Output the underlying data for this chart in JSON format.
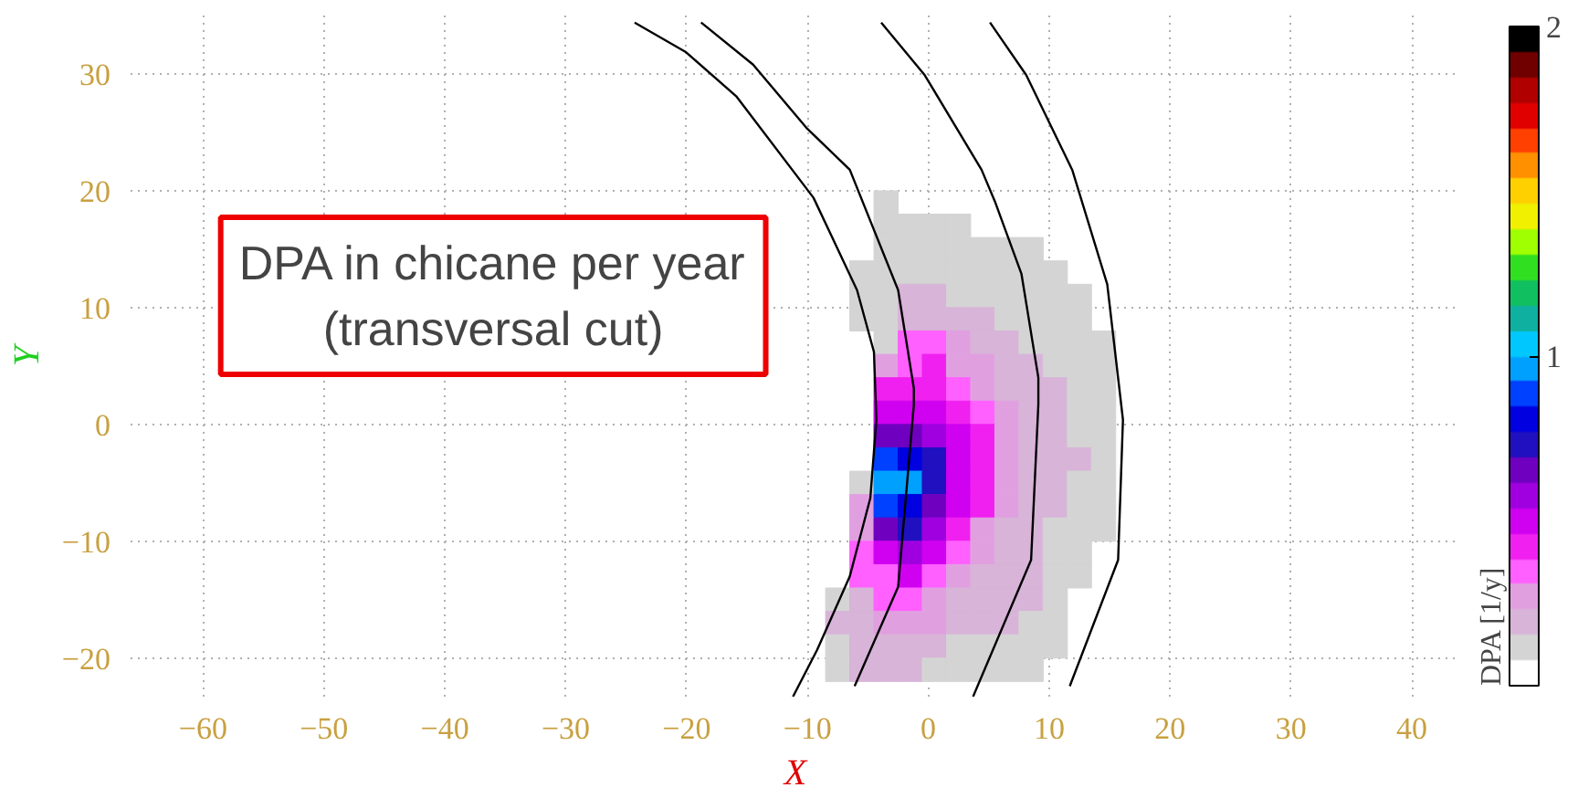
{
  "chart_data": {
    "type": "scatter",
    "xlabel": "X",
    "ylabel": "Y",
    "clabel": "DPA [1/y]",
    "annotations": [
      "DPA in chicane per year\n(transversal cut)"
    ],
    "xlim": [
      -66,
      44
    ],
    "ylim": [
      -23.3,
      35
    ],
    "xticks": [
      -60,
      -50,
      -40,
      -30,
      -20,
      -10,
      0,
      10,
      20,
      30,
      40
    ],
    "yticks": [
      -20,
      -10,
      0,
      10,
      20,
      30
    ],
    "clim": [
      0,
      2
    ],
    "cticks": [
      1,
      2
    ],
    "grid": true,
    "series": [
      {
        "marker": "square",
        "colors": [
          "#d4d4d4",
          "#d4d4d4",
          "#d4d4d4",
          "#d4d4d4",
          "#d4d4d4",
          "#d4d4d4",
          "#d4d4d4",
          "#d4d4d4",
          "#d4d4d4",
          "#d4d4d4",
          "#d4d4d4",
          "#d4d4d4",
          "#d4d4d4",
          "#d4d4d4",
          "#d4d4d4",
          "#d4d4d4",
          "#d4d4d4",
          "#d4d4d4",
          "#d4d4d4",
          "#d4d4d4",
          "#d4d4d4",
          "#d4d4d4",
          "#d4d4d4",
          "#d8b4d8",
          "#d8b4d8",
          "#d4d4d4",
          "#d4d4d4",
          "#d4d4d4",
          "#d4d4d4",
          "#d4d4d4",
          "#d4d4d4",
          "#d4d4d4",
          "#d4d4d4",
          "#d8b4d8",
          "#d8b4d8",
          "#d8b4d8",
          "#d8b4d8",
          "#d4d4d4",
          "#d4d4d4",
          "#d4d4d4",
          "#d4d4d4",
          "#d4d4d4",
          "#ff60ff",
          "#ff60ff",
          "#e0a0e0",
          "#d8b4d8",
          "#d8b4d8",
          "#d4d4d4",
          "#d4d4d4",
          "#d4d4d4",
          "#d4d4d4",
          "#e0a0e0",
          "#ff60ff",
          "#f020f0",
          "#e0a0e0",
          "#e0a0e0",
          "#d8b4d8",
          "#d8b4d8",
          "#d4d4d4",
          "#d4d4d4",
          "#d4d4d4",
          "#f020f0",
          "#f020f0",
          "#f020f0",
          "#ff60ff",
          "#e0a0e0",
          "#d8b4d8",
          "#d8b4d8",
          "#d8b4d8",
          "#d4d4d4",
          "#d4d4d4",
          "#d000f0",
          "#d000f0",
          "#d000f0",
          "#f020f0",
          "#ff60ff",
          "#e0a0e0",
          "#d8b4d8",
          "#d8b4d8",
          "#d4d4d4",
          "#d4d4d4",
          "#7000c0",
          "#7000c0",
          "#a000e0",
          "#d000f0",
          "#f020f0",
          "#e0a0e0",
          "#d8b4d8",
          "#d8b4d8",
          "#d4d4d4",
          "#d4d4d4",
          "#0040ff",
          "#0000e0",
          "#2010c0",
          "#d000f0",
          "#f020f0",
          "#e0a0e0",
          "#d8b4d8",
          "#d8b4d8",
          "#d8b4d8",
          "#d4d4d4",
          "#d4d4d4",
          "#00a0ff",
          "#00a0ff",
          "#2010c0",
          "#d000f0",
          "#f020f0",
          "#e0a0e0",
          "#d8b4d8",
          "#d8b4d8",
          "#d4d4d4",
          "#d4d4d4",
          "#e0a0e0",
          "#0040ff",
          "#0000e0",
          "#7000c0",
          "#d000f0",
          "#f020f0",
          "#e0a0e0",
          "#d8b4d8",
          "#d8b4d8",
          "#d4d4d4",
          "#d4d4d4",
          "#e0a0e0",
          "#7000c0",
          "#2010c0",
          "#a000e0",
          "#f020f0",
          "#e0a0e0",
          "#d8b4d8",
          "#d8b4d8",
          "#d4d4d4",
          "#d4d4d4",
          "#d4d4d4",
          "#ff60ff",
          "#d000f0",
          "#a000e0",
          "#d000f0",
          "#ff60ff",
          "#e0a0e0",
          "#d8b4d8",
          "#d8b4d8",
          "#d4d4d4",
          "#d4d4d4",
          "#ff60ff",
          "#ff60ff",
          "#d000f0",
          "#ff60ff",
          "#e0a0e0",
          "#d8b4d8",
          "#d8b4d8",
          "#d8b4d8",
          "#d4d4d4",
          "#d4d4d4",
          "#d4d4d4",
          "#d8b4d8",
          "#ff60ff",
          "#ff60ff",
          "#e0a0e0",
          "#d8b4d8",
          "#d8b4d8",
          "#d8b4d8",
          "#d8b4d8",
          "#d4d4d4",
          "#d8b4d8",
          "#d8b4d8",
          "#e0a0e0",
          "#e0a0e0",
          "#e0a0e0",
          "#d8b4d8",
          "#d8b4d8",
          "#d8b4d8",
          "#d4d4d4",
          "#d4d4d4",
          "#d4d4d4",
          "#d8b4d8",
          "#d8b4d8",
          "#d8b4d8",
          "#d8b4d8",
          "#d4d4d4",
          "#d4d4d4",
          "#d4d4d4",
          "#d4d4d4",
          "#d4d4d4",
          "#d4d4d4",
          "#d8b4d8",
          "#d8b4d8",
          "#d8b4d8",
          "#d4d4d4",
          "#d4d4d4",
          "#d4d4d4",
          "#d4d4d4",
          "#d4d4d4"
        ],
        "x": [
          -3.5,
          -3.5,
          -1.5,
          0.5,
          2.5,
          -3.5,
          -1.5,
          0.5,
          2.5,
          4.5,
          6.5,
          8.5,
          -5.5,
          -3.5,
          -1.5,
          0.5,
          2.5,
          4.5,
          6.5,
          8.5,
          10.5,
          -5.5,
          -3.5,
          -1.5,
          0.5,
          2.5,
          4.5,
          6.5,
          8.5,
          10.5,
          12.5,
          -5.5,
          -3.5,
          -1.5,
          0.5,
          2.5,
          4.5,
          6.5,
          8.5,
          10.5,
          12.5,
          -3.5,
          -1.5,
          0.5,
          2.5,
          4.5,
          6.5,
          8.5,
          10.5,
          12.5,
          14.5,
          -3.5,
          -1.5,
          0.5,
          2.5,
          4.5,
          6.5,
          8.5,
          10.5,
          12.5,
          14.5,
          -3.5,
          -1.5,
          0.5,
          2.5,
          4.5,
          6.5,
          8.5,
          10.5,
          12.5,
          14.5,
          -3.5,
          -1.5,
          0.5,
          2.5,
          4.5,
          6.5,
          8.5,
          10.5,
          12.5,
          14.5,
          -3.5,
          -1.5,
          0.5,
          2.5,
          4.5,
          6.5,
          8.5,
          10.5,
          12.5,
          14.5,
          -3.5,
          -1.5,
          0.5,
          2.5,
          4.5,
          6.5,
          8.5,
          10.5,
          12.5,
          14.5,
          -5.5,
          -3.5,
          -1.5,
          0.5,
          2.5,
          4.5,
          6.5,
          8.5,
          10.5,
          12.5,
          14.5,
          -5.5,
          -3.5,
          -1.5,
          0.5,
          2.5,
          4.5,
          6.5,
          8.5,
          10.5,
          12.5,
          14.5,
          -5.5,
          -3.5,
          -1.5,
          0.5,
          2.5,
          4.5,
          6.5,
          8.5,
          10.5,
          12.5,
          14.5,
          -5.5,
          -3.5,
          -1.5,
          0.5,
          2.5,
          4.5,
          6.5,
          8.5,
          10.5,
          12.5,
          -5.5,
          -3.5,
          -1.5,
          0.5,
          2.5,
          4.5,
          6.5,
          8.5,
          10.5,
          12.5,
          -7.5,
          -5.5,
          -3.5,
          -1.5,
          0.5,
          2.5,
          4.5,
          6.5,
          8.5,
          10.5,
          -7.5,
          -5.5,
          -3.5,
          -1.5,
          0.5,
          2.5,
          4.5,
          6.5,
          8.5,
          10.5,
          -7.5,
          -5.5,
          -3.5,
          -1.5,
          0.5,
          2.5,
          4.5,
          6.5,
          8.5,
          10.5,
          -7.5,
          -5.5,
          -3.5,
          -1.5,
          0.5,
          2.5,
          4.5,
          6.5,
          8.5
        ],
        "values": [
          19,
          17,
          17,
          17,
          17,
          15,
          15,
          15,
          15,
          15,
          15,
          15,
          13,
          13,
          13,
          13,
          13,
          13,
          13,
          13,
          13,
          11,
          11,
          11,
          11,
          11,
          11,
          11,
          11,
          11,
          11,
          9,
          9,
          9,
          9,
          9,
          9,
          9,
          9,
          9,
          9,
          7,
          7,
          7,
          7,
          7,
          7,
          7,
          7,
          7,
          7,
          5,
          5,
          5,
          5,
          5,
          5,
          5,
          5,
          5,
          5,
          3,
          3,
          3,
          3,
          3,
          3,
          3,
          3,
          3,
          3,
          1,
          1,
          1,
          1,
          1,
          1,
          1,
          1,
          1,
          1,
          -1,
          -1,
          -1,
          -1,
          -1,
          -1,
          -1,
          -1,
          -1,
          -1,
          -3,
          -3,
          -3,
          -3,
          -3,
          -3,
          -3,
          -3,
          -3,
          -3,
          -5,
          -5,
          -5,
          -5,
          -5,
          -5,
          -5,
          -5,
          -5,
          -5,
          -5,
          -7,
          -7,
          -7,
          -7,
          -7,
          -7,
          -7,
          -7,
          -7,
          -7,
          -7,
          -9,
          -9,
          -9,
          -9,
          -9,
          -9,
          -9,
          -9,
          -9,
          -9,
          -9,
          -11,
          -11,
          -11,
          -11,
          -11,
          -11,
          -11,
          -11,
          -11,
          -11,
          -13,
          -13,
          -13,
          -13,
          -13,
          -13,
          -13,
          -13,
          -13,
          -13,
          -15,
          -15,
          -15,
          -15,
          -15,
          -15,
          -15,
          -15,
          -15,
          -15,
          -17,
          -17,
          -17,
          -17,
          -17,
          -17,
          -17,
          -17,
          -17,
          -17,
          -19,
          -19,
          -19,
          -19,
          -19,
          -19,
          -19,
          -19,
          -19,
          -19,
          -21,
          -21,
          -21,
          -21,
          -21,
          -21,
          -21,
          -21,
          -21
        ],
        "cvalues": [
          0.12,
          0.12,
          0.12,
          0.12,
          0.12,
          0.12,
          0.12,
          0.12,
          0.12,
          0.12,
          0.12,
          0.12,
          0.12,
          0.12,
          0.12,
          0.12,
          0.12,
          0.12,
          0.12,
          0.12,
          0.12,
          0.12,
          0.12,
          0.19,
          0.19,
          0.12,
          0.12,
          0.12,
          0.12,
          0.12,
          0.12,
          0.12,
          0.12,
          0.19,
          0.19,
          0.19,
          0.19,
          0.12,
          0.12,
          0.12,
          0.12,
          0.12,
          0.35,
          0.35,
          0.27,
          0.19,
          0.19,
          0.12,
          0.12,
          0.12,
          0.12,
          0.27,
          0.35,
          0.42,
          0.27,
          0.27,
          0.19,
          0.19,
          0.12,
          0.12,
          0.12,
          0.42,
          0.42,
          0.42,
          0.35,
          0.27,
          0.19,
          0.19,
          0.19,
          0.12,
          0.12,
          0.5,
          0.5,
          0.5,
          0.42,
          0.35,
          0.27,
          0.19,
          0.19,
          0.12,
          0.12,
          0.65,
          0.65,
          0.58,
          0.5,
          0.42,
          0.27,
          0.19,
          0.19,
          0.12,
          0.12,
          0.88,
          0.81,
          0.73,
          0.5,
          0.42,
          0.27,
          0.19,
          0.19,
          0.19,
          0.12,
          0.12,
          0.96,
          0.96,
          0.73,
          0.5,
          0.42,
          0.27,
          0.19,
          0.19,
          0.12,
          0.12,
          0.27,
          0.88,
          0.81,
          0.65,
          0.5,
          0.42,
          0.27,
          0.19,
          0.19,
          0.12,
          0.12,
          0.27,
          0.65,
          0.73,
          0.58,
          0.42,
          0.27,
          0.19,
          0.19,
          0.12,
          0.12,
          0.12,
          0.35,
          0.5,
          0.58,
          0.5,
          0.35,
          0.27,
          0.19,
          0.19,
          0.12,
          0.12,
          0.35,
          0.35,
          0.5,
          0.35,
          0.27,
          0.19,
          0.19,
          0.19,
          0.12,
          0.12,
          0.12,
          0.19,
          0.35,
          0.35,
          0.27,
          0.19,
          0.19,
          0.19,
          0.19,
          0.12,
          0.19,
          0.19,
          0.27,
          0.27,
          0.27,
          0.19,
          0.19,
          0.19,
          0.12,
          0.12,
          0.12,
          0.19,
          0.19,
          0.19,
          0.19,
          0.12,
          0.12,
          0.12,
          0.12,
          0.12,
          0.12,
          0.19,
          0.19,
          0.19,
          0.12,
          0.12,
          0.12,
          0.12,
          0.12
        ]
      },
      {
        "type": "line",
        "color": "#000000",
        "x": [
          -24.3,
          -20.1,
          -15.9,
          -9.5,
          -5.9,
          -4.5,
          -4.3,
          -4.8,
          -6.5,
          -9.2,
          -11.2
        ],
        "values": [
          34.4,
          31.9,
          28.1,
          19.4,
          11.5,
          6.2,
          0.4,
          -6.3,
          -13.0,
          -19.3,
          -23.3
        ]
      },
      {
        "type": "line",
        "color": "#000000",
        "x": [
          -18.8,
          -14.5,
          -10.1,
          -6.5,
          -2.5,
          -1.2,
          -1.2,
          -2.5,
          -6.1
        ],
        "values": [
          34.4,
          30.8,
          25.4,
          21.8,
          11.5,
          3.1,
          1.7,
          -13.9,
          -22.4
        ]
      },
      {
        "type": "line",
        "color": "#000000",
        "x": [
          -3.9,
          -0.3,
          4.4,
          5.5,
          7.7,
          9.1,
          9.1,
          8.5,
          3.7
        ],
        "values": [
          34.4,
          29.9,
          21.8,
          19.1,
          12.9,
          4.0,
          1.7,
          -11.6,
          -23.3
        ]
      },
      {
        "type": "line",
        "color": "#000000",
        "x": [
          5.1,
          8.1,
          11.9,
          14.8,
          16.1,
          15.7,
          11.7
        ],
        "values": [
          34.4,
          29.9,
          21.8,
          12.0,
          0.4,
          -11.6,
          -22.4
        ]
      }
    ]
  }
}
